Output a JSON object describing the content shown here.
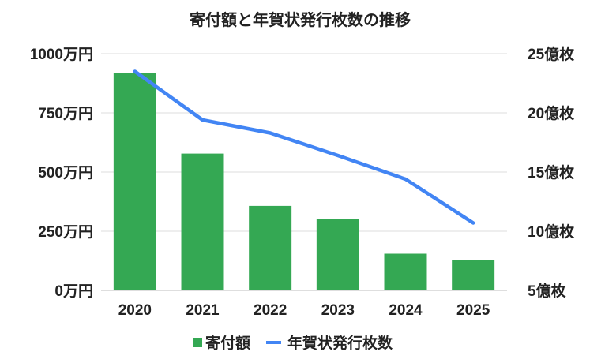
{
  "chart_data": {
    "type": "bar",
    "title": "寄付額と年賀状発行枚数の推移",
    "categories": [
      "2020",
      "2021",
      "2022",
      "2023",
      "2024",
      "2025"
    ],
    "series": [
      {
        "name": "寄付額",
        "type": "bar",
        "axis": "left",
        "color": "#34a853",
        "values": [
          920,
          578,
          357,
          302,
          155,
          128
        ]
      },
      {
        "name": "年賀状発行枚数",
        "type": "line",
        "axis": "right",
        "color": "#4285f4",
        "values": [
          23.5,
          19.4,
          18.3,
          16.4,
          14.4,
          10.7
        ]
      }
    ],
    "y_left": {
      "min": 0,
      "max": 1000,
      "ticks": [
        0,
        250,
        500,
        750,
        1000
      ],
      "tick_labels": [
        "0万円",
        "250万円",
        "500万円",
        "750万円",
        "1000万円"
      ]
    },
    "y_right": {
      "min": 5,
      "max": 25,
      "ticks": [
        5,
        10,
        15,
        20,
        25
      ],
      "tick_labels": [
        "5億枚",
        "10億枚",
        "15億枚",
        "20億枚",
        "25億枚"
      ]
    },
    "grid": true,
    "legend_position": "bottom"
  }
}
